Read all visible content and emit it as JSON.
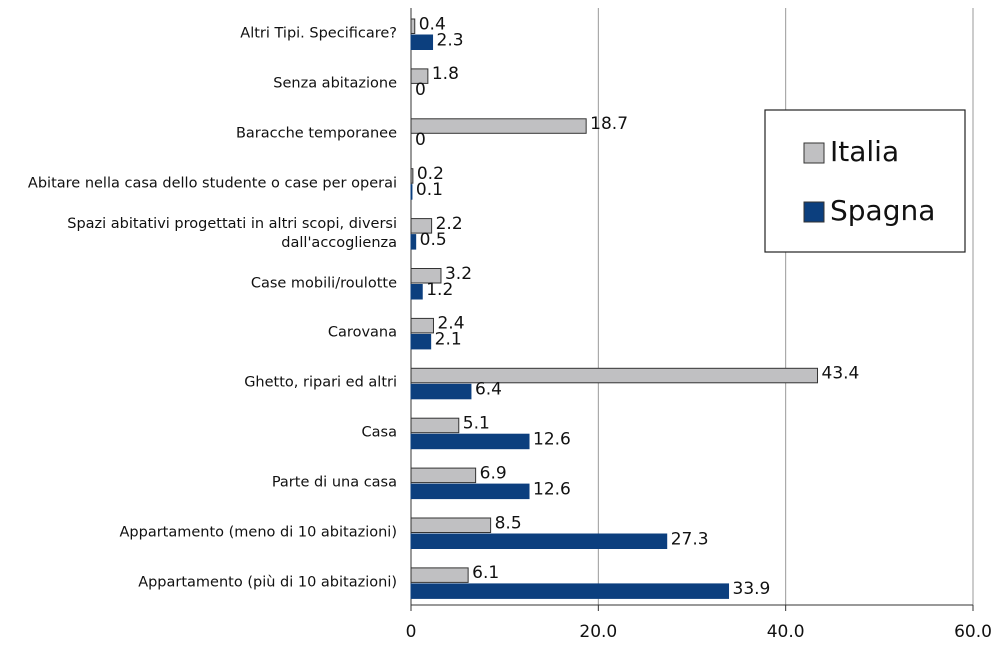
{
  "chart_data": {
    "type": "hbar",
    "categories": [
      "Altri Tipi. Specificare?",
      "Senza abitazione",
      "Baracche temporanee",
      "Abitare nella casa dello studente o case per operai",
      "Spazi abitativi progettati in altri scopi, diversi\ndall'accoglienza",
      "Case mobili/roulotte",
      "Carovana",
      "Ghetto, ripari ed altri",
      "Casa",
      "Parte di una casa",
      "Appartamento (meno di 10 abitazioni)",
      "Appartamento (più di 10 abitazioni)"
    ],
    "series": [
      {
        "name": "Italia",
        "color": "#c0c0c2",
        "values": [
          0.4,
          1.8,
          18.7,
          0.2,
          2.2,
          3.2,
          2.4,
          43.4,
          5.1,
          6.9,
          8.5,
          6.1
        ]
      },
      {
        "name": "Spagna",
        "color": "#0c3f7e",
        "values": [
          2.3,
          0,
          0,
          0.1,
          0.5,
          1.2,
          2.1,
          6.4,
          12.6,
          12.6,
          27.3,
          33.9
        ]
      }
    ],
    "xlim": [
      0,
      60
    ],
    "xticks": [
      0,
      {
        "value": 20,
        "label": "20.0"
      },
      {
        "value": 40,
        "label": "40.0"
      },
      {
        "value": 60,
        "label": "60.0"
      }
    ],
    "grid": true,
    "legend": "right"
  }
}
